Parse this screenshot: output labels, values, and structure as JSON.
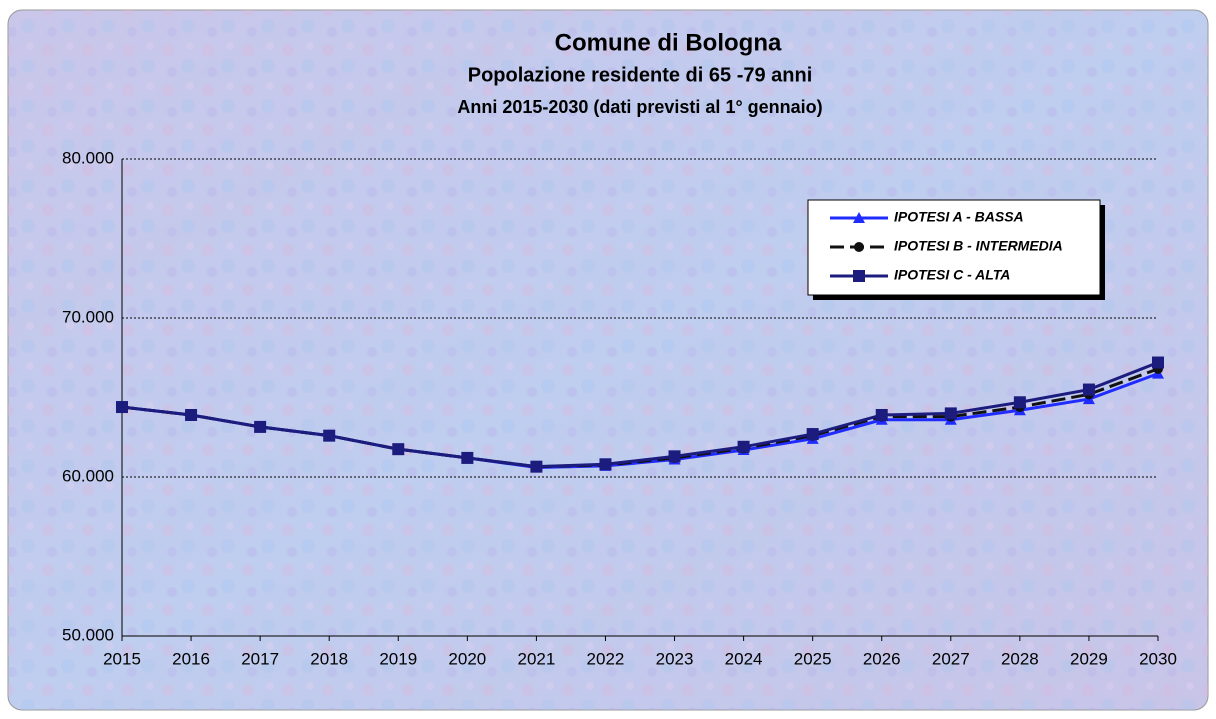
{
  "chart_data": {
    "type": "line",
    "title": "Comune di Bologna",
    "subtitle": "Popolazione residente di 65 -79 anni",
    "subtitle2": "Anni 2015-2030 (dati previsti al 1° gennaio)",
    "categories": [
      "2015",
      "2016",
      "2017",
      "2018",
      "2019",
      "2020",
      "2021",
      "2022",
      "2023",
      "2024",
      "2025",
      "2026",
      "2027",
      "2028",
      "2029",
      "2030"
    ],
    "series": [
      {
        "name": "IPOTESI A - BASSA",
        "color": "#1f2bff",
        "marker": "triangle",
        "dashed": false,
        "values": [
          64400,
          63900,
          63150,
          62600,
          61750,
          61200,
          60600,
          60700,
          61100,
          61700,
          62400,
          63600,
          63600,
          64200,
          64900,
          66500
        ]
      },
      {
        "name": "IPOTESI B - INTERMEDIA",
        "color": "#111111",
        "marker": "circle",
        "dashed": true,
        "values": [
          64400,
          63900,
          63150,
          62600,
          61750,
          61200,
          60650,
          60750,
          61200,
          61800,
          62600,
          63800,
          63800,
          64400,
          65200,
          66800
        ]
      },
      {
        "name": "IPOTESI C - ALTA",
        "color": "#1c1c7e",
        "marker": "square",
        "dashed": false,
        "values": [
          64400,
          63900,
          63150,
          62600,
          61750,
          61200,
          60650,
          60800,
          61300,
          61900,
          62700,
          63900,
          64000,
          64700,
          65500,
          67200
        ]
      }
    ],
    "ylim": [
      50000,
      80000
    ],
    "yticks": [
      {
        "value": 50000,
        "label": "50.000"
      },
      {
        "value": 60000,
        "label": "60.000"
      },
      {
        "value": 70000,
        "label": "70.000"
      },
      {
        "value": 80000,
        "label": "80.000"
      }
    ],
    "grid": true,
    "legend": "upper right"
  }
}
